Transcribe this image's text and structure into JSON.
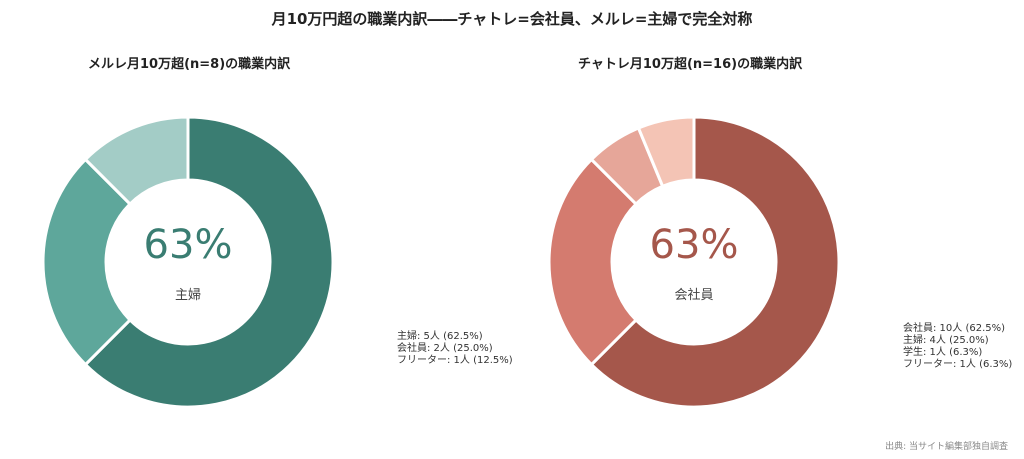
{
  "title": "月10万円超の職業内訳――チャトレ=会社員、メルレ=主婦で完全対称",
  "source": "出典: 当サイト編集部独自調査",
  "chart_data": [
    {
      "type": "pie",
      "title": "メルレ月10万超(n=8)の職業内訳",
      "center_value": "63%",
      "center_label": "主婦",
      "categories": [
        "主婦",
        "会社員",
        "フリーター"
      ],
      "values": [
        5,
        2,
        1
      ],
      "legend": [
        "主婦: 5人 (62.5%)",
        "会社員: 2人 (25.0%)",
        "フリーター: 1人 (12.5%)"
      ],
      "colors": [
        "#3a7d72",
        "#5ea79b",
        "#a3ccc6"
      ],
      "accent": "#3a7d72"
    },
    {
      "type": "pie",
      "title": "チャトレ月10万超(n=16)の職業内訳",
      "center_value": "63%",
      "center_label": "会社員",
      "categories": [
        "会社員",
        "主婦",
        "学生",
        "フリーター"
      ],
      "values": [
        10,
        4,
        1,
        1
      ],
      "legend": [
        "会社員: 10人 (62.5%)",
        "主婦: 4人 (25.0%)",
        "学生: 1人 (6.3%)",
        "フリーター: 1人 (6.3%)"
      ],
      "colors": [
        "#a5574b",
        "#d47b6f",
        "#e6a699",
        "#f4c4b5"
      ],
      "accent": "#a5574b"
    }
  ]
}
